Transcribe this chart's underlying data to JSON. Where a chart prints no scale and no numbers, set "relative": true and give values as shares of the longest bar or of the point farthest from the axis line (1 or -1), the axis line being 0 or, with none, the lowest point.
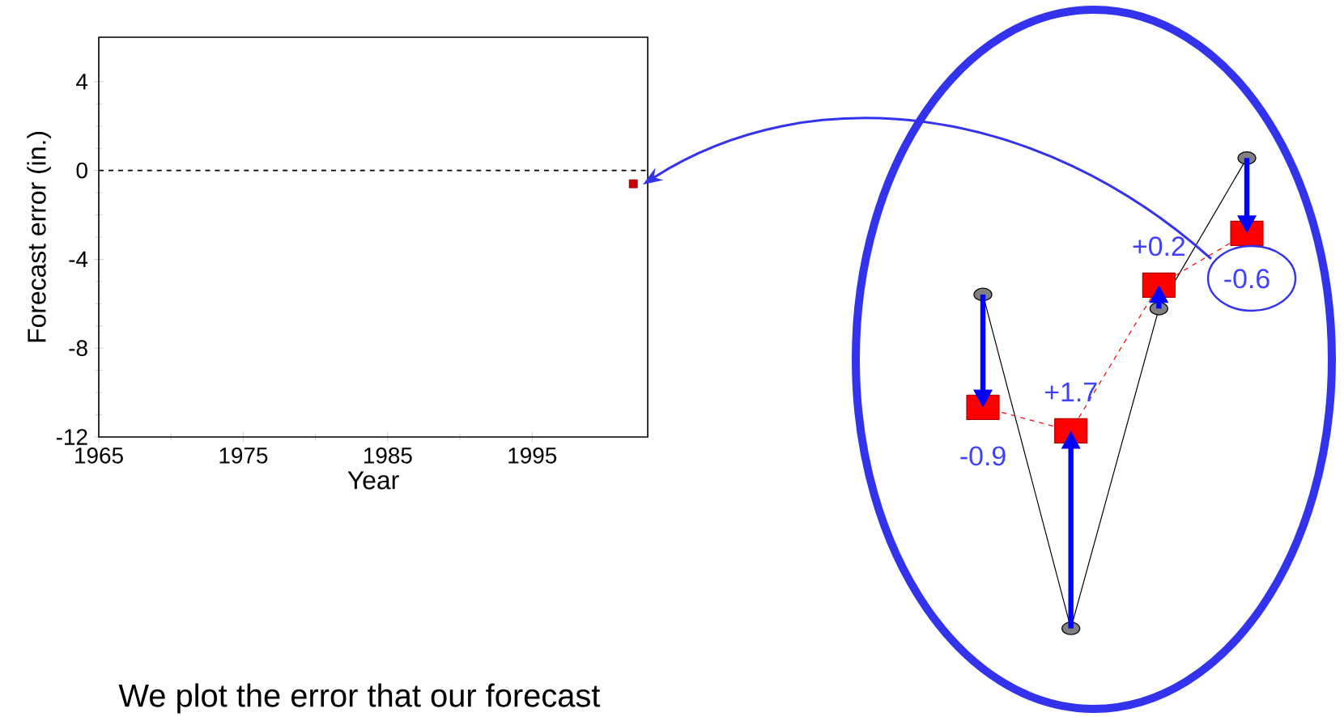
{
  "chart_data": [
    {
      "type": "scatter",
      "xlabel": "Year",
      "ylabel": "Forecast error (in.)",
      "x": [
        2002
      ],
      "values": [
        -0.6
      ],
      "color": "#cc0000",
      "marker": "square",
      "xlim": [
        1965,
        2003
      ],
      "ylim": [
        -12,
        6
      ],
      "xticks": [
        1965,
        1975,
        1985,
        1995
      ],
      "yticks": [
        -12,
        -8,
        -4,
        0,
        4
      ],
      "ref_lines": [
        {
          "axis": "y",
          "value": 0,
          "color": "#000000",
          "line_style": "dashed"
        }
      ],
      "annotations": [
        "We plot the error that our forecast"
      ]
    },
    {
      "type": "line",
      "categories": [
        null,
        null,
        null,
        null
      ],
      "relative": true,
      "series": [
        {
          "color": "#000000",
          "marker": "circle",
          "line_style": "solid",
          "values": [
            0.71,
            0,
            0.68,
            1
          ]
        },
        {
          "color": "#ff0000",
          "marker": "square",
          "line_style": "dashed",
          "values": [
            0.47,
            0.42,
            0.73,
            0.84
          ]
        }
      ],
      "annotations": [
        "-0.9",
        "+1.7",
        "+0.2",
        "-0.6"
      ]
    }
  ]
}
